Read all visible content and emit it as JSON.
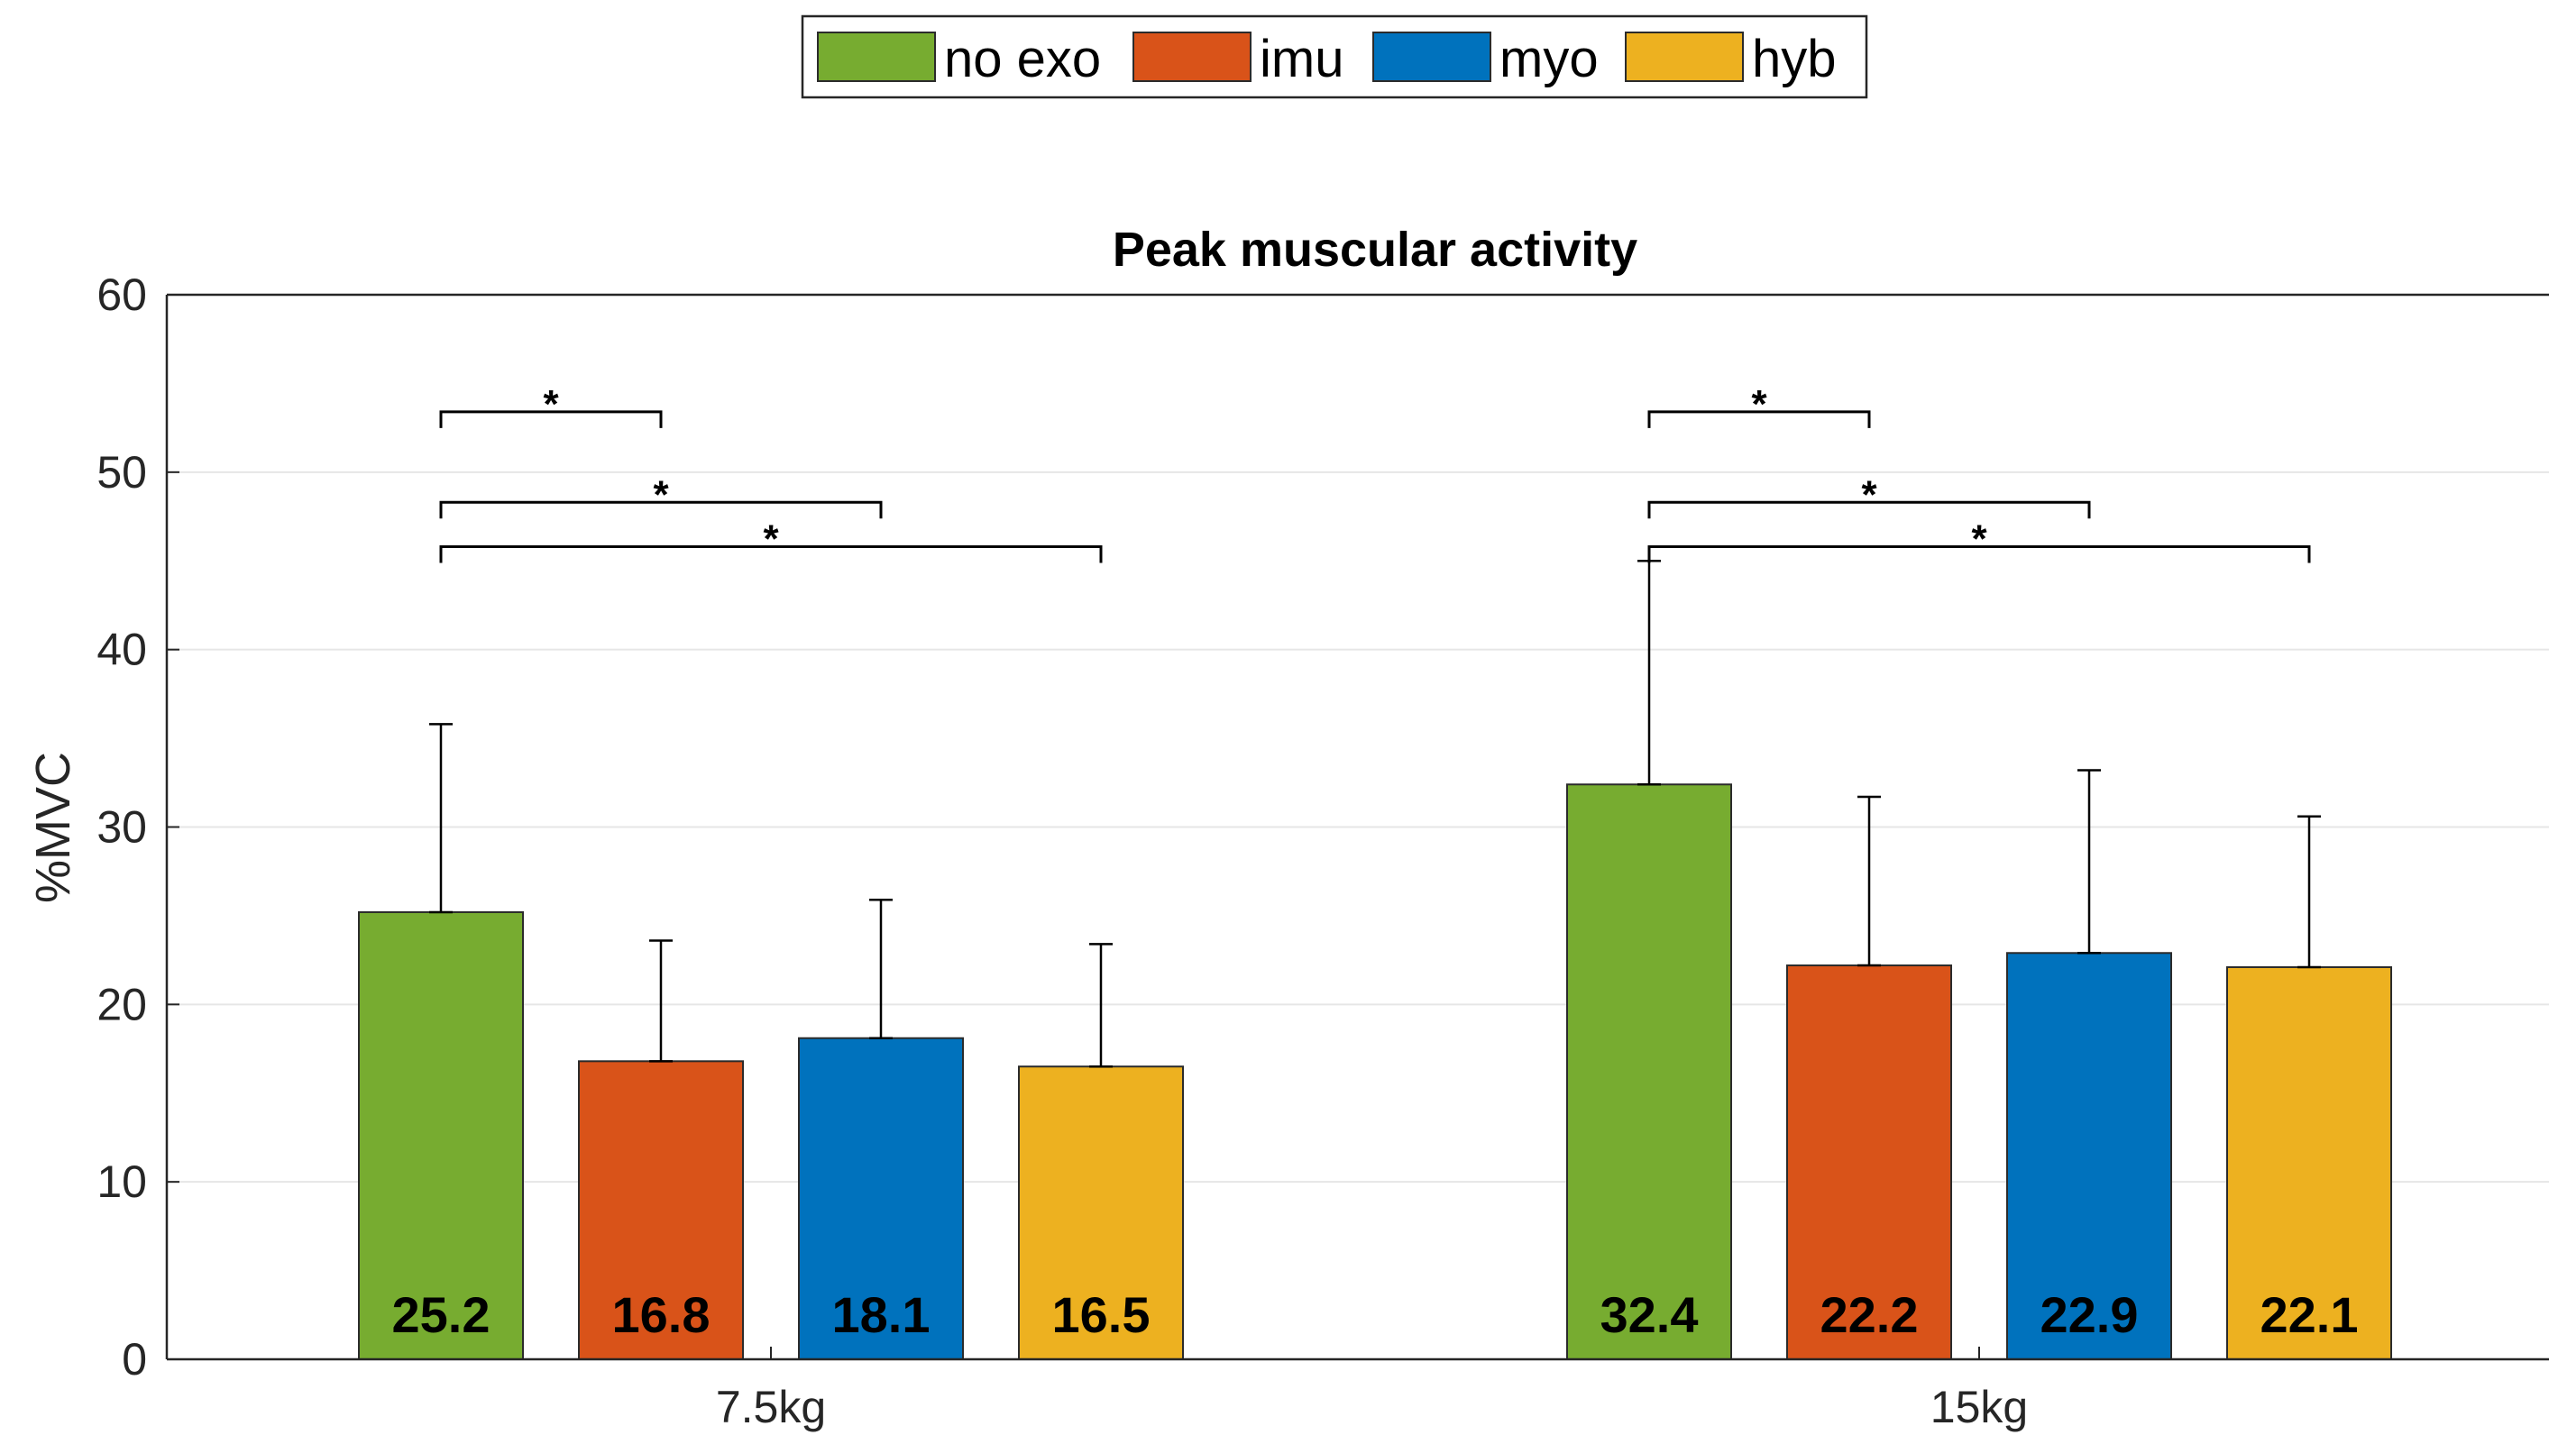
{
  "chart_data": {
    "type": "bar",
    "title": "Peak muscular activity",
    "ylabel": "%MVC",
    "xlabel": "",
    "ylim": [
      0,
      60
    ],
    "yticks": [
      0,
      10,
      20,
      30,
      40,
      50,
      60
    ],
    "grid": true,
    "legend_position": "top-center",
    "categories": [
      "7.5kg",
      "15kg"
    ],
    "series": [
      {
        "name": "no exo",
        "color": "#77AC30",
        "values": [
          25.2,
          32.4
        ],
        "error": [
          10.6,
          12.6
        ],
        "labels": [
          "25.2",
          "32.4"
        ]
      },
      {
        "name": "imu",
        "color": "#D95319",
        "values": [
          16.8,
          22.2
        ],
        "error": [
          6.8,
          9.5
        ],
        "labels": [
          "16.8",
          "22.2"
        ]
      },
      {
        "name": "myo",
        "color": "#0072BD",
        "values": [
          18.1,
          22.9
        ],
        "error": [
          7.8,
          10.3
        ],
        "labels": [
          "18.1",
          "22.9"
        ]
      },
      {
        "name": "hyb",
        "color": "#EDB120",
        "values": [
          16.5,
          22.1
        ],
        "error": [
          6.9,
          8.5
        ],
        "labels": [
          "16.5",
          "22.1"
        ]
      }
    ],
    "significance": [
      {
        "category": 0,
        "from_series": 0,
        "to_series": 1,
        "y": 53.4,
        "label": "*"
      },
      {
        "category": 0,
        "from_series": 0,
        "to_series": 2,
        "y": 48.3,
        "label": "*"
      },
      {
        "category": 0,
        "from_series": 0,
        "to_series": 3,
        "y": 45.8,
        "label": "*"
      },
      {
        "category": 1,
        "from_series": 0,
        "to_series": 1,
        "y": 53.4,
        "label": "*"
      },
      {
        "category": 1,
        "from_series": 0,
        "to_series": 2,
        "y": 48.3,
        "label": "*"
      },
      {
        "category": 1,
        "from_series": 0,
        "to_series": 3,
        "y": 45.8,
        "label": "*"
      }
    ]
  }
}
